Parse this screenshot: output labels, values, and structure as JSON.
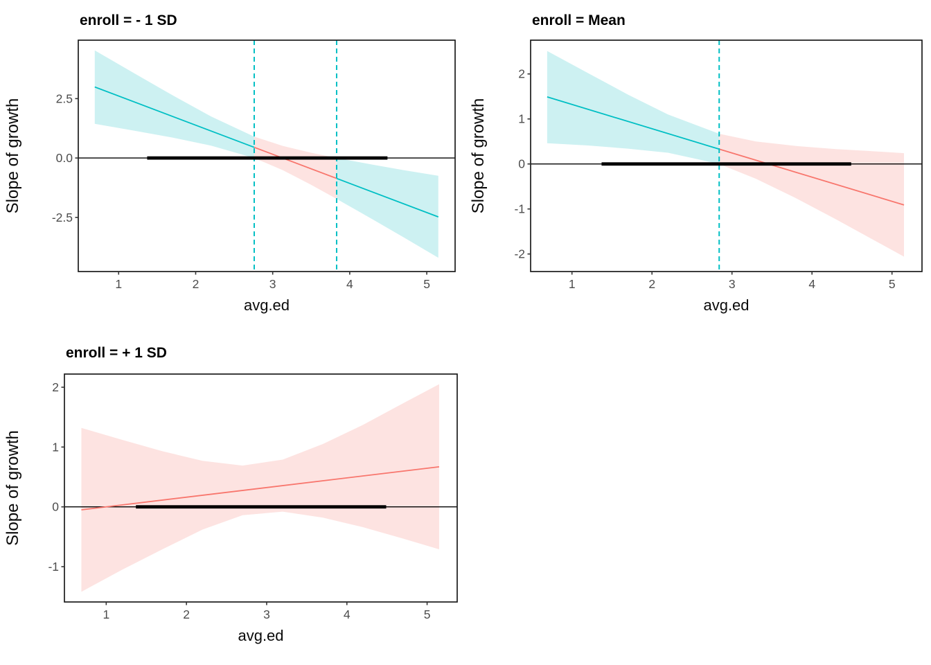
{
  "figure": {
    "description": "Johnson-Neyman simple-slopes plots: slope of growth on avg.ed at three levels of enroll",
    "background": "#FFFFFF"
  },
  "style": {
    "significant_color": "#00BFC4",
    "not_significant_color": "#F8766D",
    "significant_band_color": "#CDF1F2",
    "not_significant_band_color": "#FDE3E1",
    "jn_line_color": "#00BFC4",
    "zero_line_color": "#000000",
    "range_bar_color": "#000000",
    "border_color": "#1A1A1A",
    "tick_color": "#333333",
    "tick_label_color": "#4D4D4D",
    "axis_title_color": "#0A0A0A",
    "title_color": "#000000",
    "background": "#FFFFFF"
  },
  "chart_data": [
    {
      "id": "enroll-minus-1sd",
      "type": "line",
      "title": "enroll = - 1 SD",
      "xlabel": "avg.ed",
      "ylabel": "Slope of growth",
      "xlim": [
        0.476,
        5.368
      ],
      "ylim": [
        -4.78,
        4.96
      ],
      "xticks": [
        1,
        2,
        3,
        4,
        5
      ],
      "xtick_labels": [
        "1",
        "2",
        "3",
        "4",
        "5"
      ],
      "yticks": [
        2.5,
        0,
        -2.5
      ],
      "ytick_labels": [
        "2.5",
        "0.0",
        "-2.5"
      ],
      "zero_line_y": 0,
      "observed_range_bar": [
        1.37,
        4.49
      ],
      "jn_boundaries": [
        2.76,
        3.83
      ],
      "line_points": {
        "x": [
          0.69,
          2.76,
          3.83,
          5.15
        ],
        "y": [
          2.99,
          0.45,
          -0.86,
          -2.48
        ]
      },
      "band": {
        "x": [
          0.69,
          1.2,
          1.7,
          2.2,
          2.76,
          3.13,
          3.5,
          3.83,
          4.3,
          4.7,
          5.15
        ],
        "upper": [
          4.53,
          3.57,
          2.64,
          1.75,
          0.9,
          0.51,
          0.22,
          0.0,
          -0.28,
          -0.51,
          -0.75
        ],
        "lower": [
          1.44,
          1.15,
          0.86,
          0.52,
          0.0,
          -0.51,
          -1.13,
          -1.72,
          -2.59,
          -3.34,
          -4.2
        ]
      },
      "segments": [
        {
          "x0": 0.69,
          "x1": 2.76,
          "significance": "significant"
        },
        {
          "x0": 2.76,
          "x1": 3.83,
          "significance": "not-significant"
        },
        {
          "x0": 3.83,
          "x1": 5.15,
          "significance": "significant"
        }
      ]
    },
    {
      "id": "enroll-mean",
      "type": "line",
      "title": "enroll = Mean",
      "xlabel": "avg.ed",
      "ylabel": "Slope of growth",
      "xlim": [
        0.483,
        5.375
      ],
      "ylim": [
        -2.39,
        2.75
      ],
      "xticks": [
        1,
        2,
        3,
        4,
        5
      ],
      "xtick_labels": [
        "1",
        "2",
        "3",
        "4",
        "5"
      ],
      "yticks": [
        2,
        1,
        0,
        -1,
        -2
      ],
      "ytick_labels": [
        "2",
        "1",
        "0",
        "-1",
        "-2"
      ],
      "zero_line_y": 0,
      "observed_range_bar": [
        1.37,
        4.49
      ],
      "jn_boundaries": [
        2.84
      ],
      "line_points": {
        "x": [
          0.69,
          2.84,
          5.15
        ],
        "y": [
          1.49,
          0.33,
          -0.91
        ]
      },
      "band": {
        "x": [
          0.69,
          1.2,
          1.7,
          2.2,
          2.84,
          3.3,
          3.8,
          4.3,
          4.7,
          5.15
        ],
        "upper": [
          2.51,
          2.02,
          1.54,
          1.1,
          0.67,
          0.5,
          0.4,
          0.33,
          0.29,
          0.24
        ],
        "lower": [
          0.46,
          0.41,
          0.34,
          0.25,
          0.0,
          -0.33,
          -0.76,
          -1.23,
          -1.62,
          -2.06
        ]
      },
      "segments": [
        {
          "x0": 0.69,
          "x1": 2.84,
          "significance": "significant"
        },
        {
          "x0": 2.84,
          "x1": 5.15,
          "significance": "not-significant"
        }
      ]
    },
    {
      "id": "enroll-plus-1sd",
      "type": "line",
      "title": "enroll = + 1 SD",
      "xlabel": "avg.ed",
      "ylabel": "Slope of growth",
      "xlim": [
        0.479,
        5.375
      ],
      "ylim": [
        -1.59,
        2.22
      ],
      "xticks": [
        1,
        2,
        3,
        4,
        5
      ],
      "xtick_labels": [
        "1",
        "2",
        "3",
        "4",
        "5"
      ],
      "yticks": [
        2,
        1,
        0,
        -1
      ],
      "ytick_labels": [
        "2",
        "1",
        "0",
        "-1"
      ],
      "zero_line_y": 0,
      "observed_range_bar": [
        1.37,
        4.49
      ],
      "jn_boundaries": [],
      "line_points": {
        "x": [
          0.69,
          5.15
        ],
        "y": [
          -0.05,
          0.67
        ]
      },
      "band": {
        "x": [
          0.69,
          1.2,
          1.7,
          2.2,
          2.7,
          3.2,
          3.7,
          4.2,
          4.7,
          5.15
        ],
        "upper": [
          1.32,
          1.12,
          0.93,
          0.77,
          0.69,
          0.79,
          1.05,
          1.37,
          1.73,
          2.05
        ],
        "lower": [
          -1.42,
          -1.05,
          -0.71,
          -0.38,
          -0.14,
          -0.08,
          -0.18,
          -0.34,
          -0.53,
          -0.71
        ]
      },
      "segments": [
        {
          "x0": 0.69,
          "x1": 5.15,
          "significance": "not-significant"
        }
      ]
    }
  ]
}
